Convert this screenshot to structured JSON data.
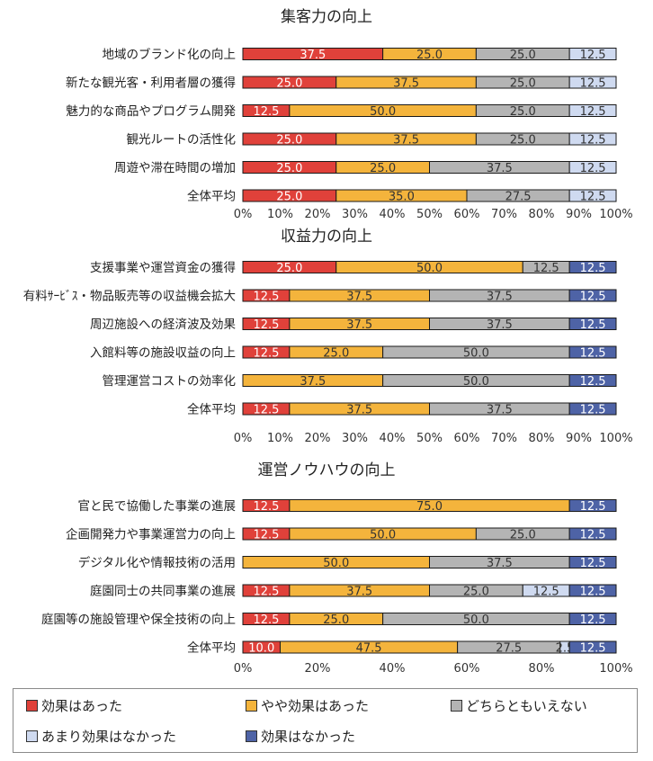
{
  "colors": [
    "#e0413a",
    "#f4b43c",
    "#b4b4b4",
    "#cfdaf0",
    "#4e63a6"
  ],
  "legend": [
    "効果はあった",
    "やや効果はあった",
    "どちらともいえない",
    "あまり効果はなかった",
    "効果はなかった"
  ],
  "chart_data": [
    {
      "type": "bar",
      "orientation": "horizontal",
      "stacked": "100%",
      "title": "集客力の向上",
      "ticks": [
        "0%",
        "10%",
        "20%",
        "30%",
        "40%",
        "50%",
        "60%",
        "70%",
        "80%",
        "90%",
        "100%"
      ],
      "rows": [
        {
          "label": "地域のブランド化の向上",
          "values": [
            37.5,
            25.0,
            25.0,
            12.5,
            0
          ]
        },
        {
          "label": "新たな観光客・利用者層の獲得",
          "values": [
            25.0,
            37.5,
            25.0,
            12.5,
            0
          ]
        },
        {
          "label": "魅力的な商品やプログラム開発",
          "values": [
            12.5,
            50.0,
            25.0,
            12.5,
            0
          ]
        },
        {
          "label": "観光ルートの活性化",
          "values": [
            25.0,
            37.5,
            25.0,
            12.5,
            0
          ]
        },
        {
          "label": "周遊や滞在時間の増加",
          "values": [
            25.0,
            25.0,
            37.5,
            12.5,
            0
          ]
        },
        {
          "label": "全体平均",
          "values": [
            25.0,
            35.0,
            27.5,
            12.5,
            0
          ]
        }
      ]
    },
    {
      "type": "bar",
      "orientation": "horizontal",
      "stacked": "100%",
      "title": "収益力の向上",
      "ticks": [
        "0%",
        "10%",
        "20%",
        "30%",
        "40%",
        "50%",
        "60%",
        "70%",
        "80%",
        "90%",
        "100%"
      ],
      "rows": [
        {
          "label": "支援事業や運営資金の獲得",
          "values": [
            25.0,
            50.0,
            12.5,
            0,
            12.5
          ]
        },
        {
          "label": "有料ｻｰﾋﾞｽ・物品販売等の収益機会拡大",
          "values": [
            12.5,
            37.5,
            37.5,
            0,
            12.5
          ]
        },
        {
          "label": "周辺施設への経済波及効果",
          "values": [
            12.5,
            37.5,
            37.5,
            0,
            12.5
          ]
        },
        {
          "label": "入館料等の施設収益の向上",
          "values": [
            12.5,
            25.0,
            50.0,
            0,
            12.5
          ]
        },
        {
          "label": "管理運営コストの効率化",
          "values": [
            0,
            37.5,
            50.0,
            0,
            12.5
          ]
        },
        {
          "label": "全体平均",
          "values": [
            12.5,
            37.5,
            37.5,
            0,
            12.5
          ]
        }
      ]
    },
    {
      "type": "bar",
      "orientation": "horizontal",
      "stacked": "100%",
      "title": "運営ノウハウの向上",
      "ticks": [
        "0%",
        "20%",
        "40%",
        "60%",
        "80%",
        "100%"
      ],
      "rows": [
        {
          "label": "官と民で協働した事業の進展",
          "values": [
            12.5,
            75.0,
            0,
            0,
            12.5
          ]
        },
        {
          "label": "企画開発力や事業運営力の向上",
          "values": [
            12.5,
            50.0,
            25.0,
            0,
            12.5
          ]
        },
        {
          "label": "デジタル化や情報技術の活用",
          "values": [
            0,
            50.0,
            37.5,
            0,
            12.5
          ]
        },
        {
          "label": "庭園同士の共同事業の進展",
          "values": [
            12.5,
            37.5,
            25.0,
            12.5,
            12.5
          ]
        },
        {
          "label": "庭園等の施設管理や保全技術の向上",
          "values": [
            12.5,
            25.0,
            50.0,
            0,
            12.5
          ]
        },
        {
          "label": "全体平均",
          "values": [
            10.0,
            47.5,
            27.5,
            2.5,
            12.5
          ],
          "value_labels": [
            "10.0",
            "47.5",
            "27.5",
            "2.5",
            "12.5"
          ]
        }
      ]
    }
  ]
}
